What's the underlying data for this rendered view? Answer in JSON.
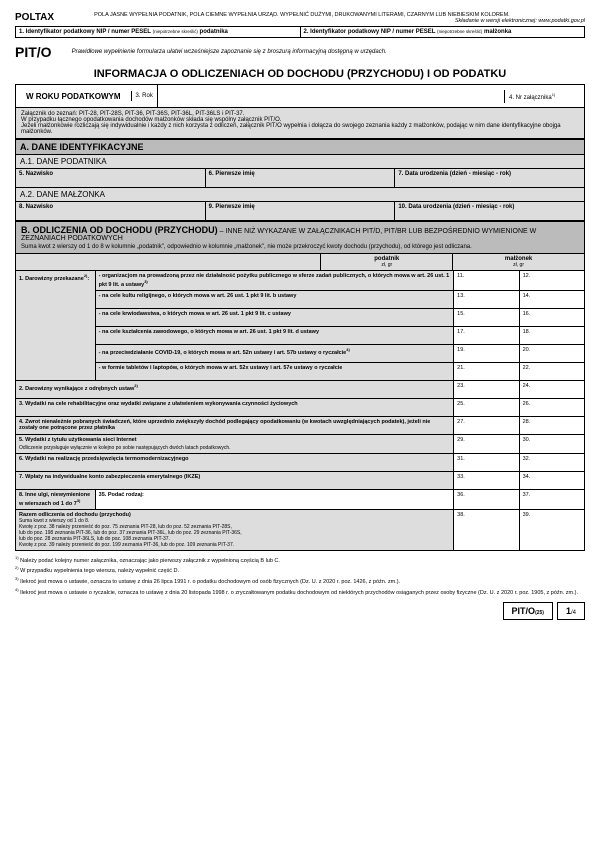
{
  "header": {
    "brand": "POLTAX",
    "note1": "POLA JASNE WYPEŁNIA PODATNIK, POLA CIEMNE WYPEŁNIA URZĄD. WYPEŁNIĆ DUŻYMI, DRUKOWANYMI LITERAMI, CZARNYM LUB NIEBIESKIM KOLOREM.",
    "note2": "Składanie w wersji elektronicznej: www.podatki.gov.pl",
    "id1": "1. Identyfikator podatkowy NIP / numer PESEL",
    "id1_small": "(niepotrzebne skreślić)",
    "id1_suffix": "podatnika",
    "id2": "2. Identyfikator podatkowy NIP / numer PESEL",
    "id2_small": "(niepotrzebne skreślić)",
    "id2_suffix": "małżonka"
  },
  "pito": {
    "code": "PIT/O",
    "note": "Prawidłowe wypełnienie formularza ułatwi wcześniejsze zapoznanie się z broszurą informacyjną dostępną w urzędach."
  },
  "title": "INFORMACJA O ODLICZENIACH OD DOCHODU (PRZYCHODU) I OD PODATKU",
  "year": {
    "label": "W ROKU PODATKOWYM",
    "f3": "3. Rok",
    "f4": "4. Nr załącznika"
  },
  "infobox": {
    "l1": "Załącznik do zeznań: PIT-28, PIT-28S, PIT-36, PIT-36S, PIT-36L, PIT-36LS i PIT-37.",
    "l2": "W przypadku łącznego opodatkowania dochodów małżonków składa się wspólny załącznik PIT/O.",
    "l3": "Jeżeli małżonkowie rozliczają się indywidualnie i każdy z nich korzysta z odliczeń, załącznik PIT/O wypełnia i dołącza do swojego zeznania każdy z małżonków, podając w nim dane identyfikacyjne obojga małżonków."
  },
  "sectionA": {
    "title": "A. DANE IDENTYFIKACYJNE",
    "a1": "A.1. DANE PODATNIKA",
    "a1_f5": "5. Nazwisko",
    "a1_f6": "6. Pierwsze imię",
    "a1_f7": "7. Data urodzenia (dzień - miesiąc - rok)",
    "a2": "A.2. DANE MAŁŻONKA",
    "a2_f8": "8. Nazwisko",
    "a2_f9": "9. Pierwsze imię",
    "a2_f10": "10. Data urodzenia (dzień - miesiąc - rok)"
  },
  "sectionB": {
    "title": "B. ODLICZENIA OD DOCHODU (PRZYCHODU)",
    "title_cont": " – INNE NIŻ WYKAZANE W ZAŁĄCZNIKACH PIT/D, PIT/BR LUB BEZPOŚREDNIO WYMIENIONE W ZEZNANIACH PODATKOWYCH",
    "note": "Suma kwot z wierszy od 1 do 8 w kolumnie „podatnik\", odpowiednio w kolumnie „małżonek\", nie może przekroczyć kwoty dochodu (przychodu), od którego jest odliczana.",
    "col1": "podatnik",
    "col2": "małżonek",
    "unit": "zł,            gr"
  },
  "rows": [
    {
      "lab": "1. Darowizny przekazane",
      "desc": "- organizacjom na prowadzoną przez nie działalność pożytku publicznego w sferze zadań publicznych, o których mowa w art. 26 ust. 1 pkt 9 lit. a ustawy",
      "n1": "11.",
      "n2": "12."
    },
    {
      "desc": "- na cele kultu religijnego, o których mowa w art. 26 ust. 1 pkt 9 lit. b ustawy",
      "n1": "13.",
      "n2": "14."
    },
    {
      "desc": "- na cele krwiodawstwa, o których mowa w art. 26 ust. 1 pkt 9 lit. c ustawy",
      "n1": "15.",
      "n2": "16."
    },
    {
      "desc": "- na cele kształcenia zawodowego, o których mowa w art. 26 ust. 1 pkt 9 lit. d ustawy",
      "n1": "17.",
      "n2": "18."
    },
    {
      "desc": "- na przeciwdziałanie COVID-19, o których mowa  w art. 52n ustawy i art. 57b ustawy o ryczałcie",
      "n1": "19.",
      "n2": "20."
    },
    {
      "desc": "- w formie tabletów i laptopów, o których mowa w art. 52x ustawy i art. 57e ustawy o ryczałcie",
      "n1": "21.",
      "n2": "22."
    },
    {
      "full": true,
      "desc": "2. Darowizny wynikające z odrębnych ustaw",
      "n1": "23.",
      "n2": "24."
    },
    {
      "full": true,
      "desc": "3. Wydatki na cele rehabilitacyjne oraz wydatki związane z ułatwieniem wykonywania czynności życiowych",
      "n1": "25.",
      "n2": "26."
    },
    {
      "full": true,
      "desc": "4. Zwrot nienależnie pobranych świadczeń, które uprzednio zwiększyły dochód podlegający opodatkowaniu (w kwotach uwzględniających podatek), jeżeli nie zostały one potrącone przez płatnika",
      "n1": "27.",
      "n2": "28."
    },
    {
      "full": true,
      "desc": "5. Wydatki z tytułu użytkowania sieci Internet",
      "sub": "Odliczenie przysługuje wyłącznie w kolejno po sobie następujących dwóch latach podatkowych.",
      "n1": "29.",
      "n2": "30."
    },
    {
      "full": true,
      "desc": "6. Wydatki na realizację przedsięwzięcia termomodernizacyjnego",
      "n1": "31.",
      "n2": "32."
    },
    {
      "full": true,
      "desc": "7. Wpłaty na indywidualne konto zabezpieczenia emerytalnego (IKZE)",
      "n1": "33.",
      "n2": "34."
    },
    {
      "split": true,
      "lab": "8. Inne ulgi, niewymienione w wierszach od 1 do 7",
      "desc": "35. Podać rodzaj:",
      "n1": "36.",
      "n2": "37."
    }
  ],
  "totalRow": {
    "title": "Razem odliczenia od dochodu (przychodu)",
    "lines": [
      "Suma kwot z wierszy od 1 do 8.",
      "Kwotę z poz. 38 należy przenieść do poz. 75 zeznania PIT-28, lub do poz. 52 zeznania PIT-28S,",
      "lub do poz. 198 zeznania PIT-36, lub do poz. 37 zeznania PIT-36L, lub do poz. 29 zeznania PIT-36S,",
      "lub do poz. 28 zeznania PIT-36LS, lub do poz. 108 zeznania PIT-37.",
      "Kwotę z poz. 39 należy przenieść do poz. 199 zeznania PIT-36, lub do poz. 109 zeznania PIT-37."
    ],
    "n1": "38.",
    "n2": "39."
  },
  "footnotes": [
    "Należy podać kolejny numer załącznika, oznaczając jako pierwszy załącznik z wypełnioną częścią B lub C.",
    "W przypadku wypełnienia tego wiersza, należy wypełnić część D.",
    "Ilekroć jest mowa o ustawie, oznacza to ustawę z dnia 26 lipca 1991 r. o podatku dochodowym od osób fizycznych (Dz. U. z 2020 r. poz. 1426, z późn. zm.).",
    "Ilekroć jest mowa o ustawie o ryczałcie, oznacza to ustawę z dnia 20 listopada 1998 r. o zryczałtowanym podatku dochodowym od niektórych przychodów osiąganych przez osoby fizyczne (Dz. U. z 2020 r. poz. 1905, z późn. zm.)."
  ],
  "footer": {
    "code": "PIT/O",
    "ver": "(25)",
    "page": "1/4"
  }
}
